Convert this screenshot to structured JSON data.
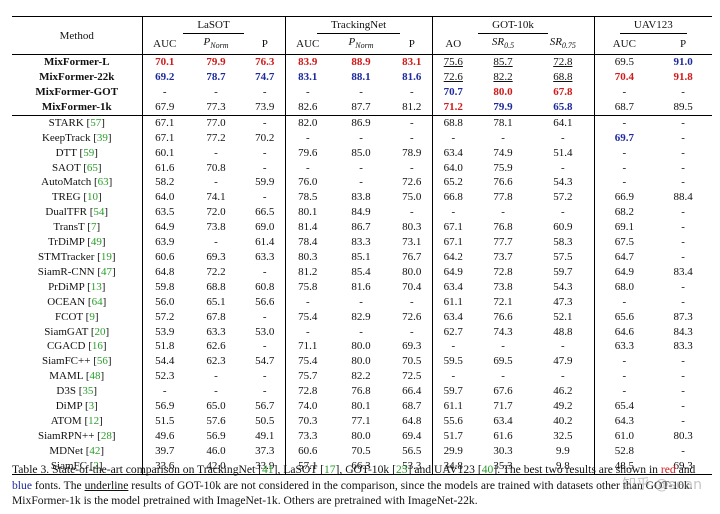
{
  "table": {
    "method_header": "Method",
    "groups": [
      {
        "name": "LaSOT",
        "cols": [
          "AUC",
          "P_Norm",
          "P"
        ]
      },
      {
        "name": "TrackingNet",
        "cols": [
          "AUC",
          "P_Norm",
          "P"
        ]
      },
      {
        "name": "GOT-10k",
        "cols": [
          "AO",
          "SR0.5",
          "SR0.75"
        ]
      },
      {
        "name": "UAV123",
        "cols": [
          "AUC",
          "P"
        ]
      }
    ],
    "header_cols": [
      {
        "main": "AUC"
      },
      {
        "main": "P",
        "sub": "Norm",
        "italic": true
      },
      {
        "main": "P"
      },
      {
        "main": "AUC"
      },
      {
        "main": "P",
        "sub": "Norm",
        "italic": true
      },
      {
        "main": "P"
      },
      {
        "main": "AO"
      },
      {
        "main": "SR",
        "sub": "0.5",
        "italic": true
      },
      {
        "main": "SR",
        "sub": "0.75",
        "italic": true
      },
      {
        "main": "AUC"
      },
      {
        "main": "P"
      }
    ],
    "top_rows": [
      {
        "name": "MixFormer-L",
        "vals": [
          "70.1",
          "79.9",
          "76.3",
          "83.9",
          "88.9",
          "83.1",
          "75.6",
          "85.7",
          "72.8",
          "69.5",
          "91.0"
        ],
        "styles": [
          "red",
          "red",
          "red",
          "red",
          "red",
          "red",
          "ul",
          "ul",
          "ul",
          "",
          "blue"
        ]
      },
      {
        "name": "MixFormer-22k",
        "vals": [
          "69.2",
          "78.7",
          "74.7",
          "83.1",
          "88.1",
          "81.6",
          "72.6",
          "82.2",
          "68.8",
          "70.4",
          "91.8"
        ],
        "styles": [
          "blue",
          "blue",
          "blue",
          "blue",
          "blue",
          "blue",
          "ul",
          "ul",
          "ul",
          "red",
          "red"
        ]
      },
      {
        "name": "MixFormer-GOT",
        "vals": [
          "-",
          "-",
          "-",
          "-",
          "-",
          "-",
          "70.7",
          "80.0",
          "67.8",
          "-",
          "-"
        ],
        "styles": [
          "",
          "",
          "",
          "",
          "",
          "",
          "blue",
          "red",
          "red",
          "",
          ""
        ]
      },
      {
        "name": "MixFormer-1k",
        "vals": [
          "67.9",
          "77.3",
          "73.9",
          "82.6",
          "87.7",
          "81.2",
          "71.2",
          "79.9",
          "65.8",
          "68.7",
          "89.5"
        ],
        "styles": [
          "",
          "",
          "",
          "",
          "",
          "",
          "red",
          "blue",
          "blue",
          "",
          ""
        ]
      }
    ],
    "rows": [
      {
        "name": "STARK",
        "ref": "57",
        "vals": [
          "67.1",
          "77.0",
          "-",
          "82.0",
          "86.9",
          "-",
          "68.8",
          "78.1",
          "64.1",
          "-",
          "-"
        ]
      },
      {
        "name": "KeepTrack",
        "ref": "39",
        "vals": [
          "67.1",
          "77.2",
          "70.2",
          "-",
          "-",
          "-",
          "-",
          "-",
          "-",
          "69.7",
          "-"
        ],
        "styles": [
          "",
          "",
          "",
          "",
          "",
          "",
          "",
          "",
          "",
          "blue",
          ""
        ]
      },
      {
        "name": "DTT",
        "ref": "59",
        "vals": [
          "60.1",
          "-",
          "-",
          "79.6",
          "85.0",
          "78.9",
          "63.4",
          "74.9",
          "51.4",
          "-",
          "-"
        ]
      },
      {
        "name": "SAOT",
        "ref": "65",
        "vals": [
          "61.6",
          "70.8",
          "-",
          "-",
          "-",
          "-",
          "64.0",
          "75.9",
          "-",
          "-",
          "-"
        ]
      },
      {
        "name": "AutoMatch",
        "ref": "63",
        "vals": [
          "58.2",
          "-",
          "59.9",
          "76.0",
          "-",
          "72.6",
          "65.2",
          "76.6",
          "54.3",
          "-",
          "-"
        ]
      },
      {
        "name": "TREG",
        "ref": "10",
        "vals": [
          "64.0",
          "74.1",
          "-",
          "78.5",
          "83.8",
          "75.0",
          "66.8",
          "77.8",
          "57.2",
          "66.9",
          "88.4"
        ]
      },
      {
        "name": "DualTFR",
        "ref": "54",
        "vals": [
          "63.5",
          "72.0",
          "66.5",
          "80.1",
          "84.9",
          "-",
          "-",
          "-",
          "-",
          "68.2",
          "-"
        ]
      },
      {
        "name": "TransT",
        "ref": "7",
        "vals": [
          "64.9",
          "73.8",
          "69.0",
          "81.4",
          "86.7",
          "80.3",
          "67.1",
          "76.8",
          "60.9",
          "69.1",
          "-"
        ]
      },
      {
        "name": "TrDiMP",
        "ref": "49",
        "vals": [
          "63.9",
          "-",
          "61.4",
          "78.4",
          "83.3",
          "73.1",
          "67.1",
          "77.7",
          "58.3",
          "67.5",
          "-"
        ]
      },
      {
        "name": "STMTracker",
        "ref": "19",
        "vals": [
          "60.6",
          "69.3",
          "63.3",
          "80.3",
          "85.1",
          "76.7",
          "64.2",
          "73.7",
          "57.5",
          "64.7",
          "-"
        ]
      },
      {
        "name": "SiamR-CNN",
        "ref": "47",
        "vals": [
          "64.8",
          "72.2",
          "-",
          "81.2",
          "85.4",
          "80.0",
          "64.9",
          "72.8",
          "59.7",
          "64.9",
          "83.4"
        ]
      },
      {
        "name": "PrDiMP",
        "ref": "13",
        "vals": [
          "59.8",
          "68.8",
          "60.8",
          "75.8",
          "81.6",
          "70.4",
          "63.4",
          "73.8",
          "54.3",
          "68.0",
          "-"
        ]
      },
      {
        "name": "OCEAN",
        "ref": "64",
        "vals": [
          "56.0",
          "65.1",
          "56.6",
          "-",
          "-",
          "-",
          "61.1",
          "72.1",
          "47.3",
          "-",
          "-"
        ]
      },
      {
        "name": "FCOT",
        "ref": "9",
        "vals": [
          "57.2",
          "67.8",
          "-",
          "75.4",
          "82.9",
          "72.6",
          "63.4",
          "76.6",
          "52.1",
          "65.6",
          "87.3"
        ]
      },
      {
        "name": "SiamGAT",
        "ref": "20",
        "vals": [
          "53.9",
          "63.3",
          "53.0",
          "-",
          "-",
          "-",
          "62.7",
          "74.3",
          "48.8",
          "64.6",
          "84.3"
        ]
      },
      {
        "name": "CGACD",
        "ref": "16",
        "vals": [
          "51.8",
          "62.6",
          "-",
          "71.1",
          "80.0",
          "69.3",
          "-",
          "-",
          "-",
          "63.3",
          "83.3"
        ]
      },
      {
        "name": "SiamFC++",
        "ref": "56",
        "vals": [
          "54.4",
          "62.3",
          "54.7",
          "75.4",
          "80.0",
          "70.5",
          "59.5",
          "69.5",
          "47.9",
          "-",
          "-"
        ]
      },
      {
        "name": "MAML",
        "ref": "48",
        "vals": [
          "52.3",
          "-",
          "-",
          "75.7",
          "82.2",
          "72.5",
          "-",
          "-",
          "-",
          "-",
          "-"
        ]
      },
      {
        "name": "D3S",
        "ref": "35",
        "vals": [
          "-",
          "-",
          "-",
          "72.8",
          "76.8",
          "66.4",
          "59.7",
          "67.6",
          "46.2",
          "-",
          "-"
        ]
      },
      {
        "name": "DiMP",
        "ref": "3",
        "vals": [
          "56.9",
          "65.0",
          "56.7",
          "74.0",
          "80.1",
          "68.7",
          "61.1",
          "71.7",
          "49.2",
          "65.4",
          "-"
        ]
      },
      {
        "name": "ATOM",
        "ref": "12",
        "vals": [
          "51.5",
          "57.6",
          "50.5",
          "70.3",
          "77.1",
          "64.8",
          "55.6",
          "63.4",
          "40.2",
          "64.3",
          "-"
        ]
      },
      {
        "name": "SiamRPN++",
        "ref": "28",
        "vals": [
          "49.6",
          "56.9",
          "49.1",
          "73.3",
          "80.0",
          "69.4",
          "51.7",
          "61.6",
          "32.5",
          "61.0",
          "80.3"
        ]
      },
      {
        "name": "MDNet",
        "ref": "42",
        "vals": [
          "39.7",
          "46.0",
          "37.3",
          "60.6",
          "70.5",
          "56.5",
          "29.9",
          "30.3",
          "9.9",
          "52.8",
          "-"
        ]
      },
      {
        "name": "SiamFC",
        "ref": "2",
        "vals": [
          "33.6",
          "42.0",
          "33.9",
          "57.1",
          "66.3",
          "53.3",
          "34.8",
          "35.3",
          "9.8",
          "48.5",
          "69.3"
        ]
      }
    ]
  },
  "caption": {
    "p1": "Table 3. State-of-the-art comparison on TrackingNet [",
    "r1": "41",
    "p2": "], LaSOT [",
    "r2": "17",
    "p3": "], GOT-10k [",
    "r3": "23",
    "p4": "] and UAV123 [",
    "r4": "40",
    "p5": "]. The best two results are shown in ",
    "red_word": "red",
    "p6": " and ",
    "blue_word": "blue",
    "p7": " fonts. The ",
    "underline_word": "underline",
    "p8": " results of GOT-10k are not considered in the comparison, since the models are trained with datasets other than GOT-10k. MixFormer-1k is the model pretrained with ImageNet-1k. Others are pretrained with ImageNet-22k."
  },
  "watermark": "知乎 @sean"
}
